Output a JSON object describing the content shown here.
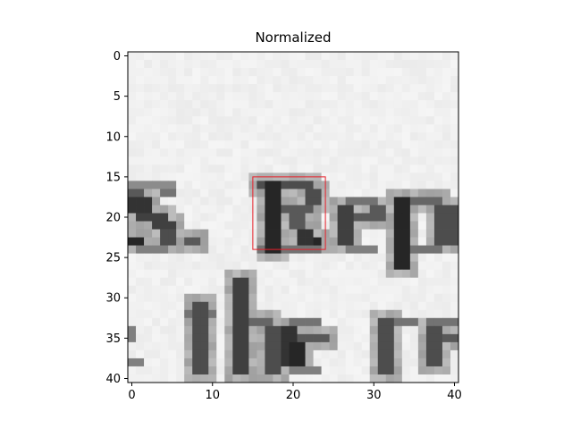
{
  "chart_data": {
    "type": "heatmap",
    "title": "Normalized",
    "colormap": "gray",
    "xlim": [
      -0.5,
      40.5
    ],
    "ylim": [
      40.5,
      -0.5
    ],
    "xticks": [
      0,
      10,
      20,
      30,
      40
    ],
    "yticks": [
      0,
      5,
      10,
      15,
      20,
      25,
      30,
      35,
      40
    ],
    "xtick_labels": [
      "0",
      "10",
      "20",
      "30",
      "40"
    ],
    "ytick_labels": [
      "0",
      "5",
      "10",
      "15",
      "20",
      "25",
      "30",
      "35",
      "40"
    ],
    "grid": false,
    "background_level": 0.96,
    "visible_text": "S. Rep / the re",
    "highlight_box": {
      "x": [
        15,
        24
      ],
      "y": [
        15,
        24
      ],
      "color": "#e8202a"
    }
  }
}
